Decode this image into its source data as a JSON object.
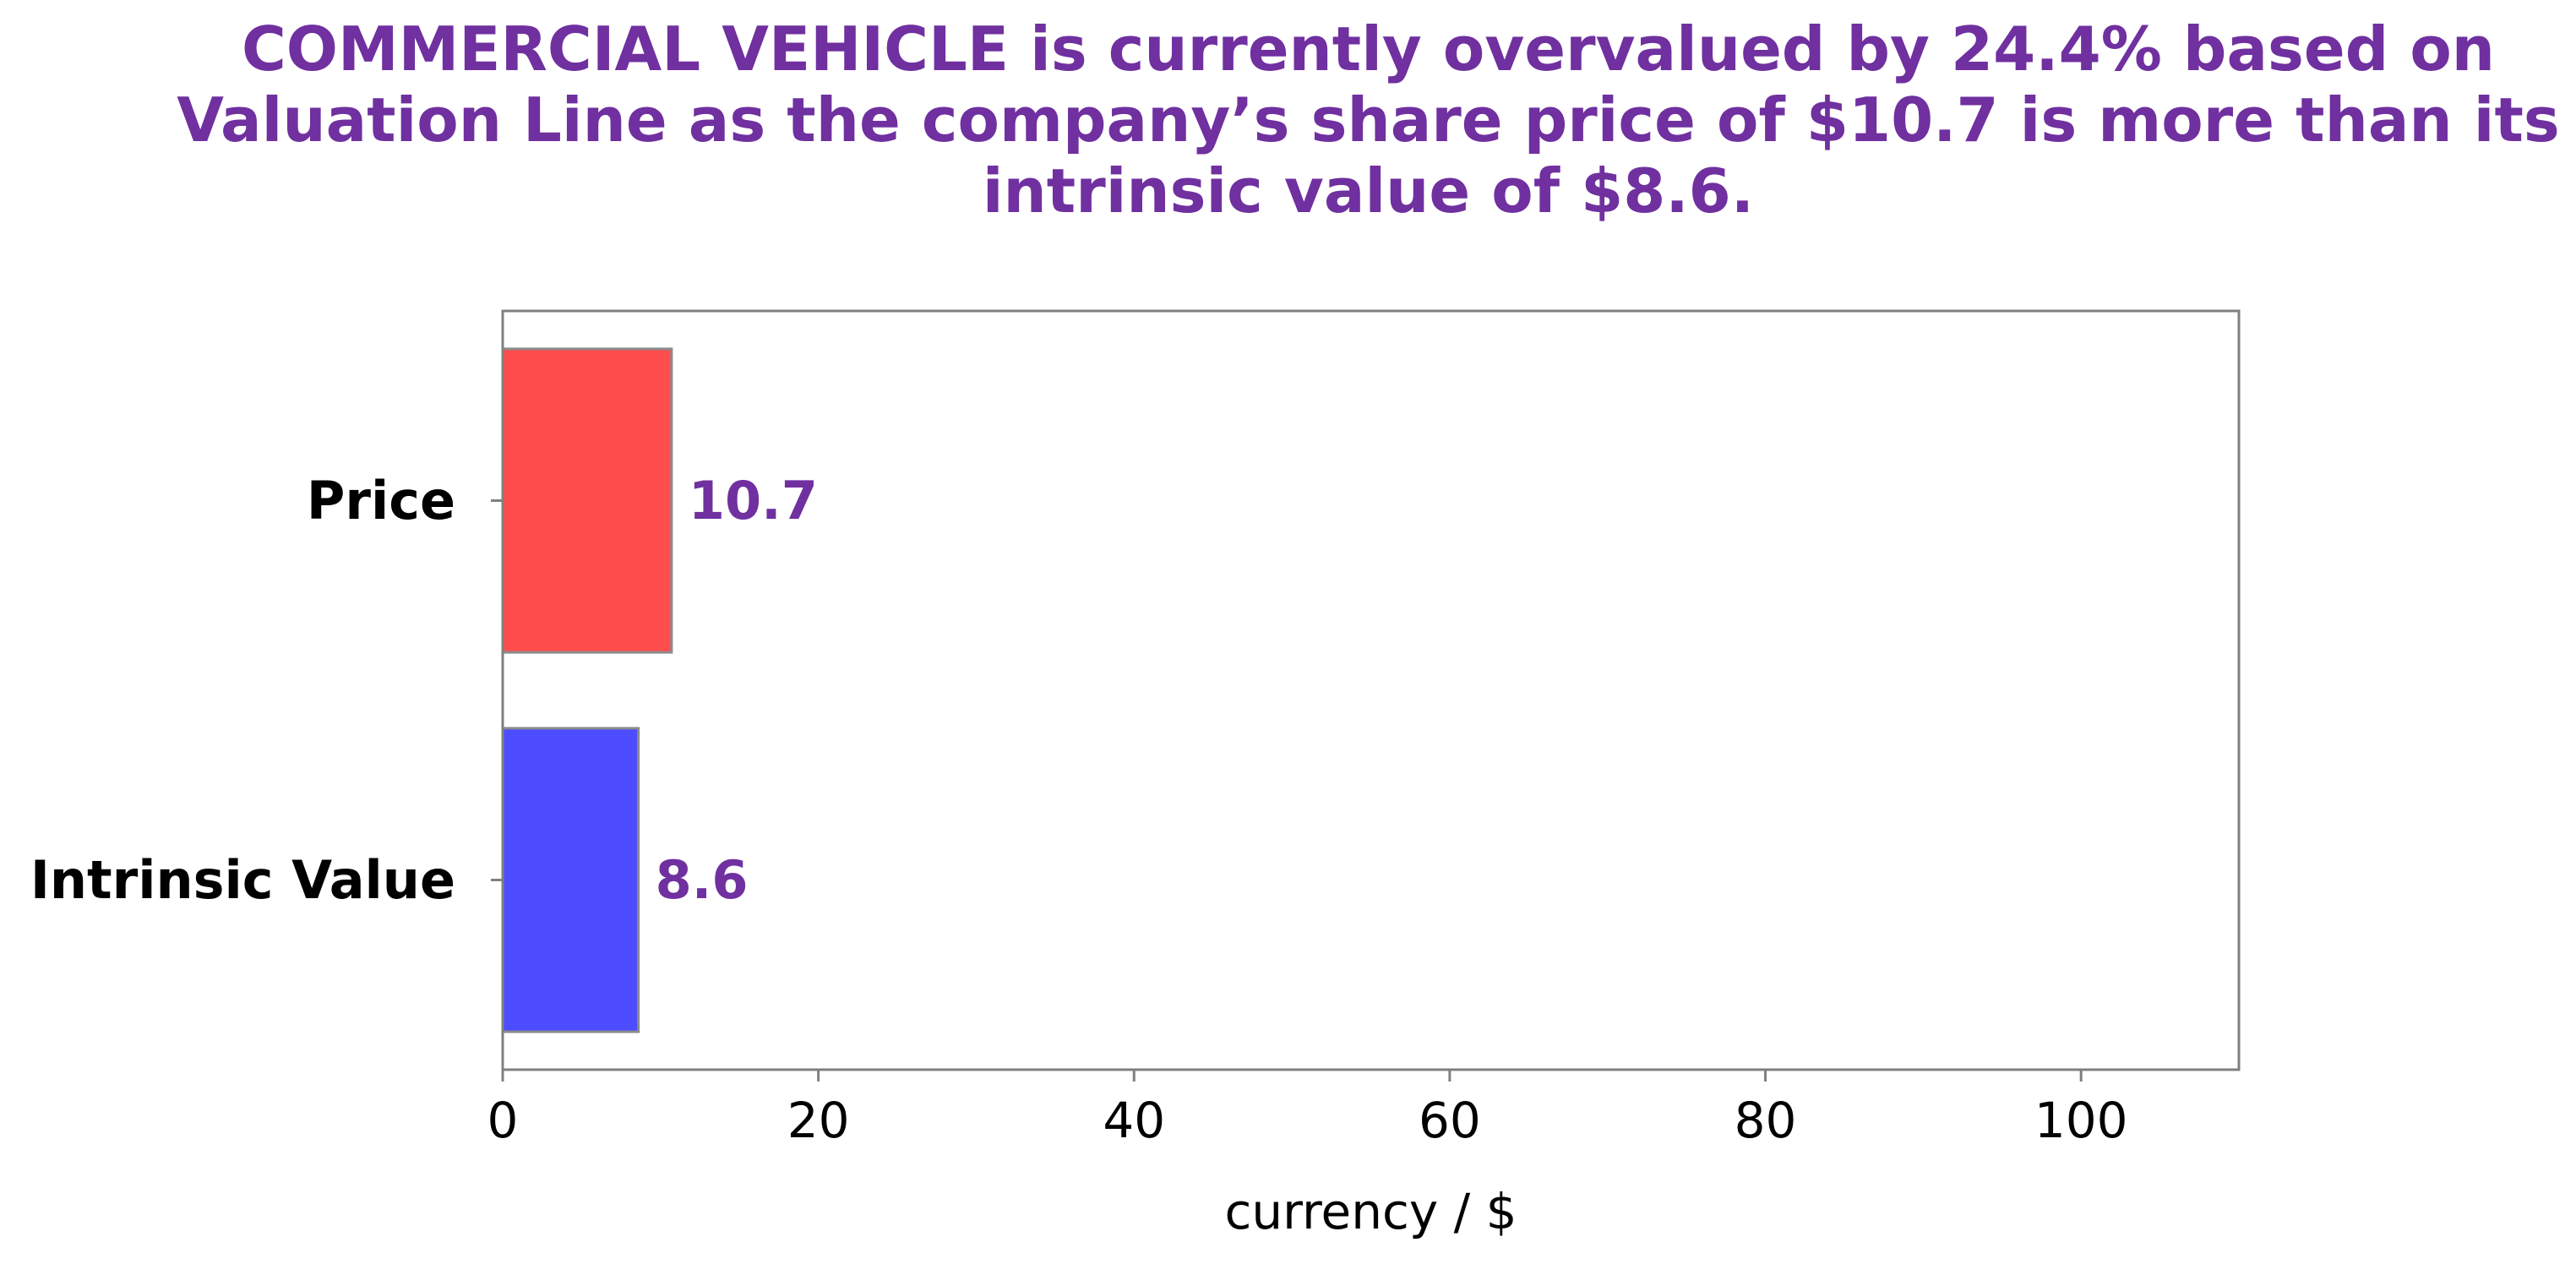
{
  "chart_data": {
    "type": "bar",
    "orientation": "horizontal",
    "title": "COMMERCIAL VEHICLE is currently overvalued by 24.4% based on Valuation Line as the company’s share price of $10.7 is more than its intrinsic value of $8.6.",
    "categories": [
      "Price",
      "Intrinsic Value"
    ],
    "values": [
      10.7,
      8.6
    ],
    "value_labels": [
      "10.7",
      "8.6"
    ],
    "bar_colors": [
      "#ff4d4d",
      "#4d4dff"
    ],
    "xlabel": "currency / $",
    "ylabel": "",
    "xlim": [
      0,
      110
    ],
    "xticks": [
      0,
      20,
      40,
      60,
      80,
      100
    ],
    "xtick_labels": [
      "0",
      "20",
      "40",
      "60",
      "80",
      "100"
    ],
    "grid": false,
    "title_color": "#7030a0",
    "value_label_color": "#7030a0"
  }
}
